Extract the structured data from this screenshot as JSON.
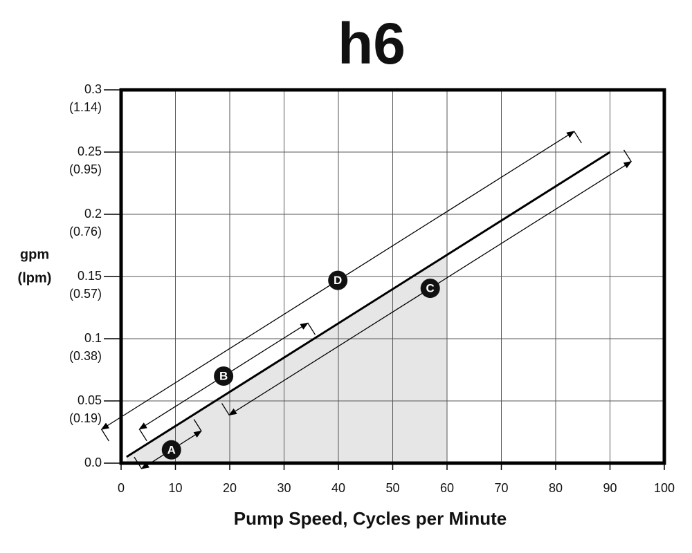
{
  "chart_data": {
    "type": "line",
    "title": "h6",
    "xlabel": "Pump Speed, Cycles per Minute",
    "ylabel": [
      "gpm",
      "(lpm)"
    ],
    "xlim": [
      0,
      100
    ],
    "xticks": [
      0,
      10,
      20,
      30,
      40,
      50,
      60,
      70,
      80,
      90,
      100
    ],
    "ylim": [
      0,
      0.3
    ],
    "yticks": [
      {
        "value": 0,
        "label": "0.0"
      },
      0.05,
      0.1,
      0.15,
      0.2,
      0.25,
      0.3
    ],
    "lpm_labels": [
      {
        "value": 0.05,
        "label": "(0.19)"
      },
      {
        "value": 0.1,
        "label": "(0.38)"
      },
      {
        "value": 0.15,
        "label": "(0.57)"
      },
      {
        "value": 0.2,
        "label": "(0.76)"
      },
      {
        "value": 0.25,
        "label": "(0.95)"
      },
      {
        "value": 0.3,
        "label": "(1.14)"
      }
    ],
    "grid": true,
    "line": {
      "x": [
        1,
        90
      ],
      "y": [
        0.005,
        0.25
      ],
      "color": "#000000"
    },
    "shaded_region": {
      "x": [
        1,
        60
      ],
      "color": "#e6e6e6"
    },
    "ranges": [
      {
        "label": "A",
        "start": 2,
        "end": 13
      },
      {
        "label": "B",
        "start": 5,
        "end": 36
      },
      {
        "label": "C",
        "start": 18,
        "end": 92
      },
      {
        "label": "D",
        "start": 0,
        "end": 87
      }
    ]
  }
}
